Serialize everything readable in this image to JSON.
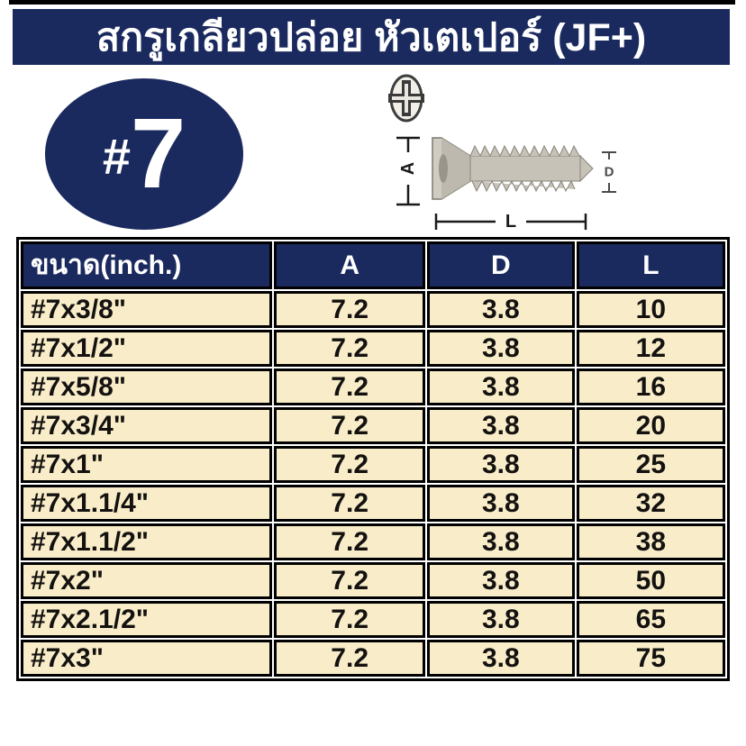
{
  "header": {
    "title": "สกรูเกลียวปล่อย หัวเตเปอร์ (JF+)"
  },
  "badge": {
    "prefix": "#",
    "number": "7"
  },
  "diagram": {
    "labels": {
      "a": "A",
      "d": "D",
      "l": "L"
    }
  },
  "table": {
    "headers": [
      "ขนาด(inch.)",
      "A",
      "D",
      "L"
    ],
    "rows": [
      [
        "#7x3/8\"",
        "7.2",
        "3.8",
        "10"
      ],
      [
        "#7x1/2\"",
        "7.2",
        "3.8",
        "12"
      ],
      [
        "#7x5/8\"",
        "7.2",
        "3.8",
        "16"
      ],
      [
        "#7x3/4\"",
        "7.2",
        "3.8",
        "20"
      ],
      [
        "#7x1\"",
        "7.2",
        "3.8",
        "25"
      ],
      [
        "#7x1.1/4\"",
        "7.2",
        "3.8",
        "32"
      ],
      [
        "#7x1.1/2\"",
        "7.2",
        "3.8",
        "38"
      ],
      [
        "#7x2\"",
        "7.2",
        "3.8",
        "50"
      ],
      [
        "#7x2.1/2\"",
        "7.2",
        "3.8",
        "65"
      ],
      [
        "#7x3\"",
        "7.2",
        "3.8",
        "75"
      ]
    ]
  },
  "colors": {
    "navy": "#1B2A5E",
    "cream": "#F9EDC9",
    "border": "#000000",
    "title_text": "#FFFFFF",
    "body_text": "#141210"
  }
}
